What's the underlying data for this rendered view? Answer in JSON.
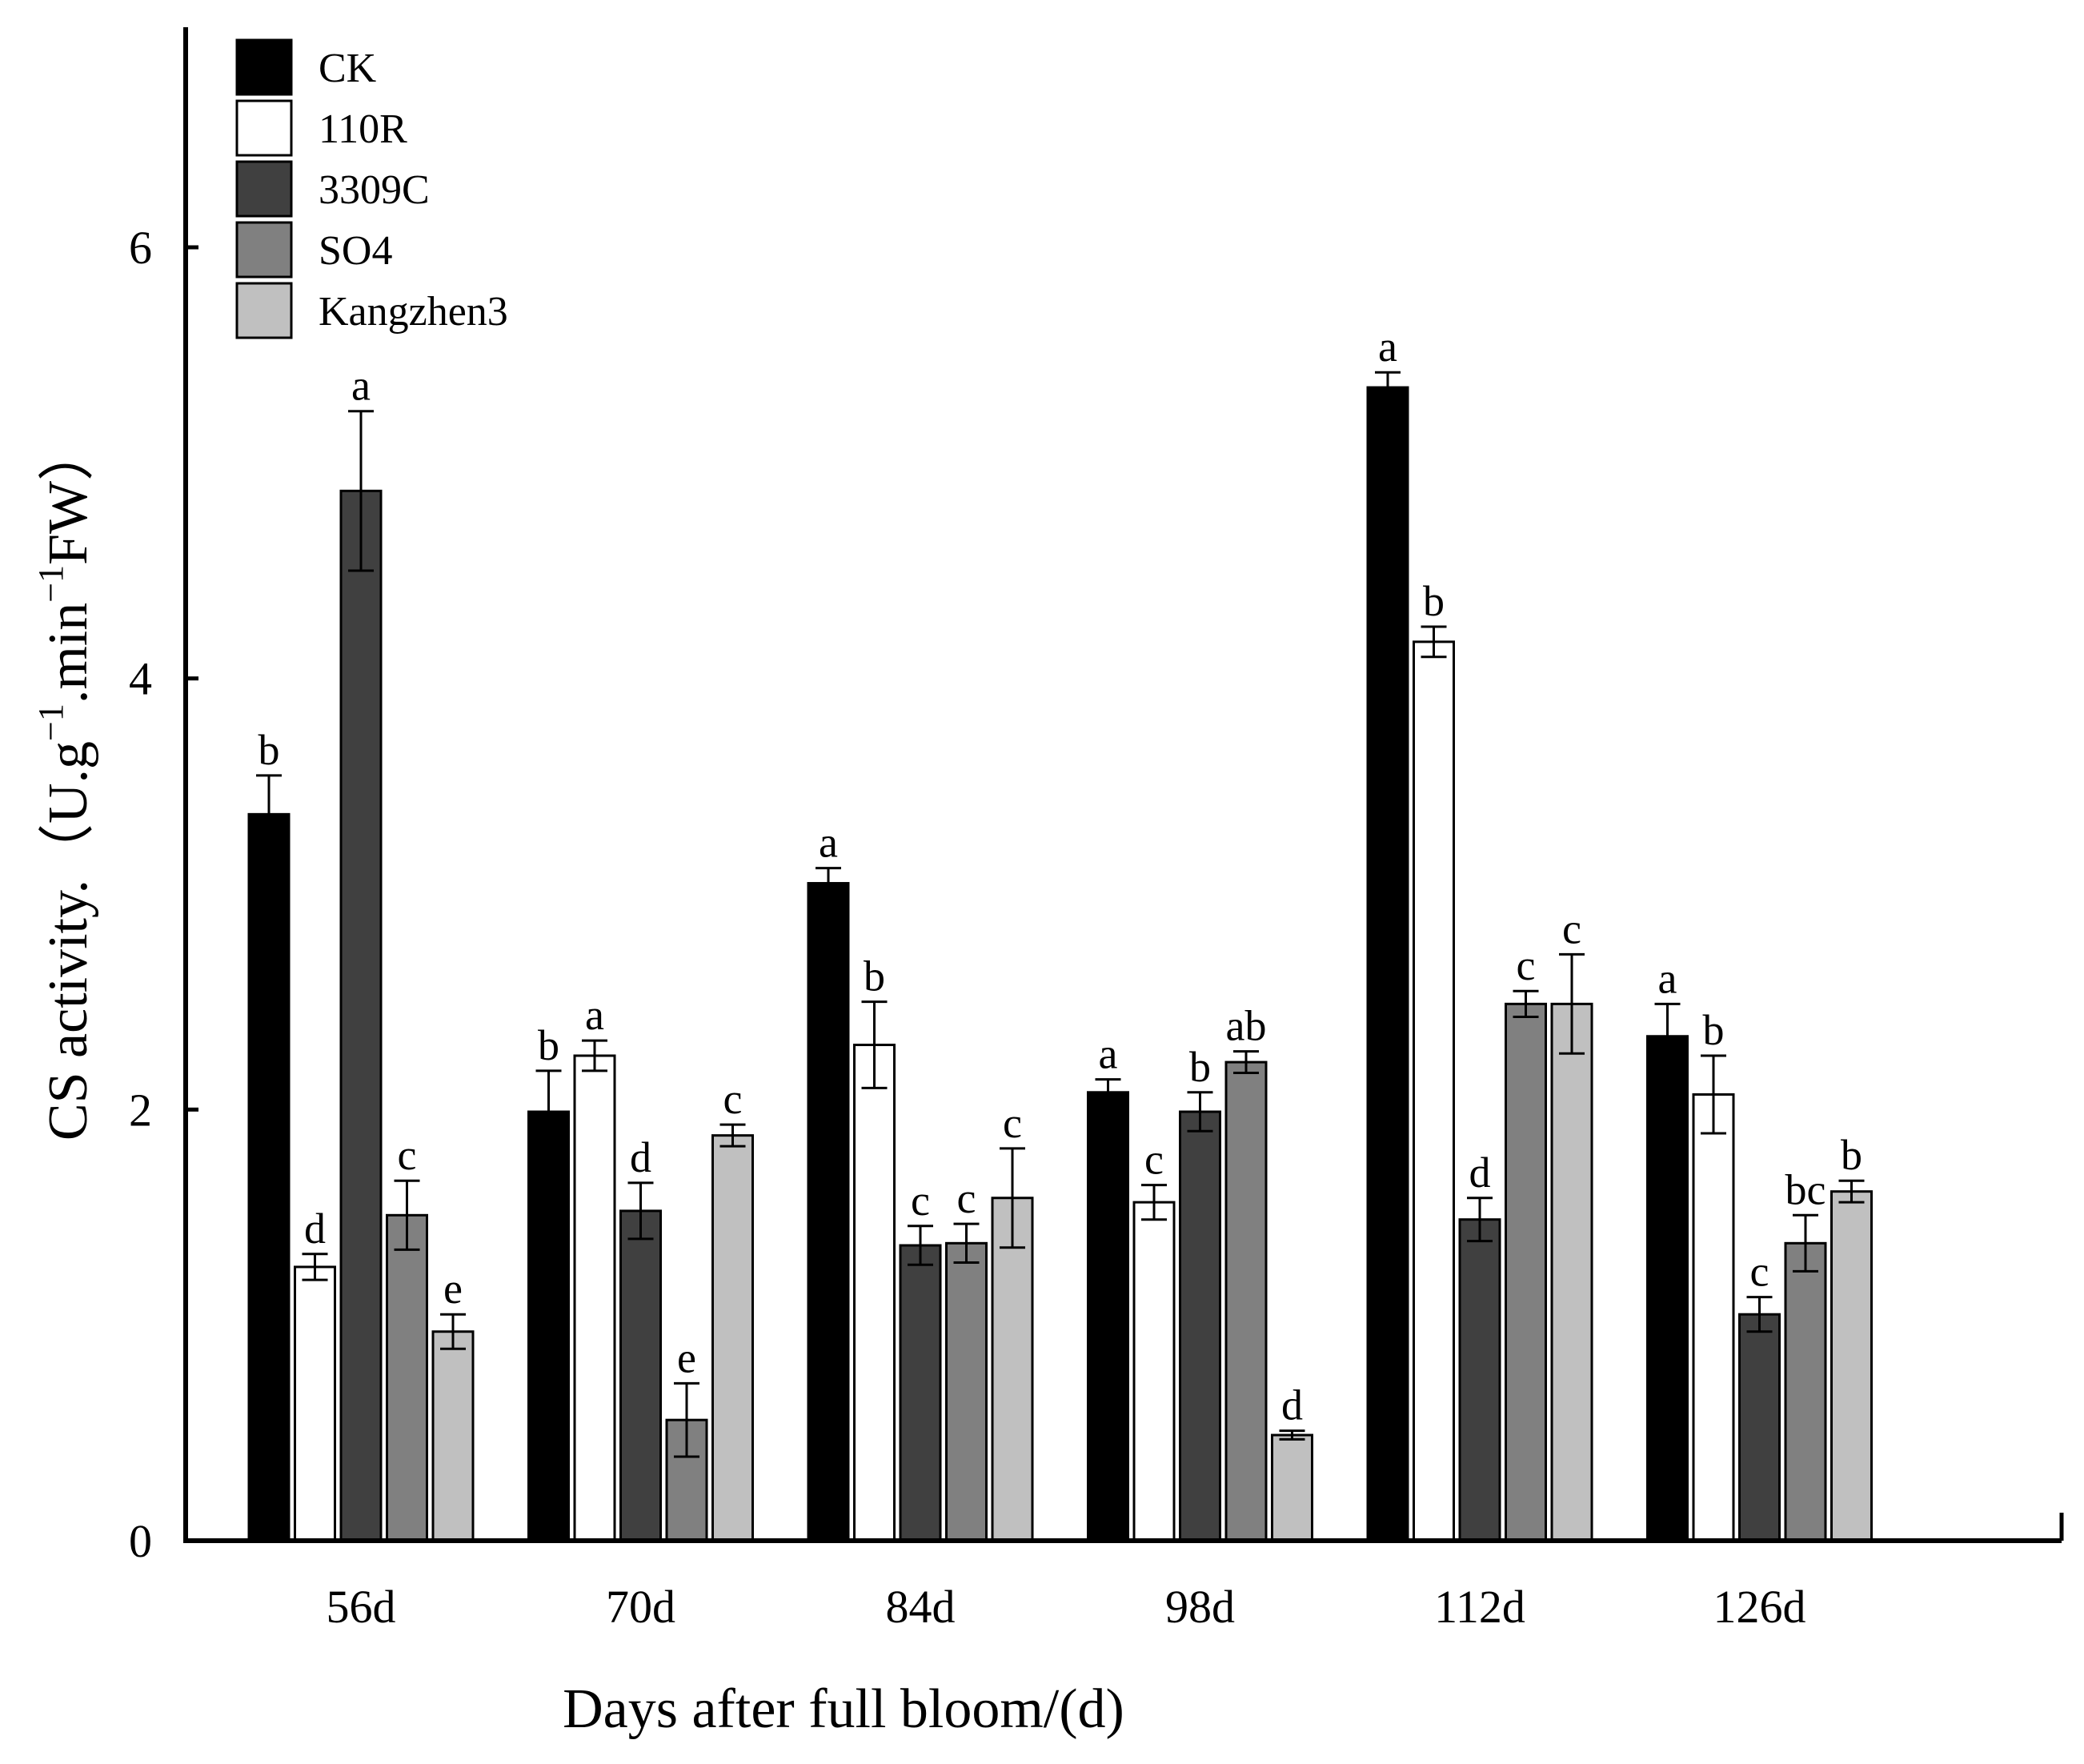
{
  "chart_data": {
    "type": "bar",
    "title": "",
    "xlabel": "Days after full bloom/(d)",
    "ylabel": "CS activity.（U.g⁻¹.min⁻¹FW）",
    "ylabel_parts": {
      "prefix": "CS activity.（U.g",
      "sup1": "−1",
      "mid": ".min",
      "sup2": "−1",
      "suffix": "FW）"
    },
    "ylim": [
      0,
      7
    ],
    "yticks": [
      "0",
      "2",
      "4",
      "6"
    ],
    "ytick_values": [
      0,
      2,
      4,
      6
    ],
    "categories": [
      "56d",
      "70d",
      "84d",
      "98d",
      "112d",
      "126d"
    ],
    "legend_position": "top-left",
    "series": [
      {
        "name": "CK",
        "color": "#000000",
        "values": [
          3.37,
          1.99,
          3.05,
          2.08,
          5.35,
          2.34
        ],
        "errors": [
          0.18,
          0.19,
          0.07,
          0.06,
          0.07,
          0.15
        ],
        "labels": [
          "b",
          "b",
          "a",
          "a",
          "a",
          "a"
        ]
      },
      {
        "name": "110R",
        "color": "#ffffff",
        "values": [
          1.27,
          2.25,
          2.3,
          1.57,
          4.17,
          2.07
        ],
        "errors": [
          0.06,
          0.07,
          0.2,
          0.08,
          0.07,
          0.18
        ],
        "labels": [
          "d",
          "a",
          "b",
          "c",
          "b",
          "b"
        ]
      },
      {
        "name": "3309C",
        "color": "#404040",
        "values": [
          4.87,
          1.53,
          1.37,
          1.99,
          1.49,
          1.05
        ],
        "errors": [
          0.37,
          0.13,
          0.09,
          0.09,
          0.1,
          0.08
        ],
        "labels": [
          "a",
          "d",
          "c",
          "b",
          "d",
          "c"
        ]
      },
      {
        "name": "SO4",
        "color": "#808080",
        "values": [
          1.51,
          0.56,
          1.38,
          2.22,
          2.49,
          1.38
        ],
        "errors": [
          0.16,
          0.17,
          0.09,
          0.05,
          0.06,
          0.13
        ],
        "labels": [
          "c",
          "e",
          "c",
          "ab",
          "c",
          "bc"
        ]
      },
      {
        "name": "Kangzhen3",
        "color": "#c0c0c0",
        "values": [
          0.97,
          1.88,
          1.59,
          0.49,
          2.49,
          1.62
        ],
        "errors": [
          0.08,
          0.05,
          0.23,
          0.02,
          0.23,
          0.05
        ],
        "labels": [
          "e",
          "c",
          "c",
          "d",
          "c",
          "b"
        ]
      }
    ]
  }
}
